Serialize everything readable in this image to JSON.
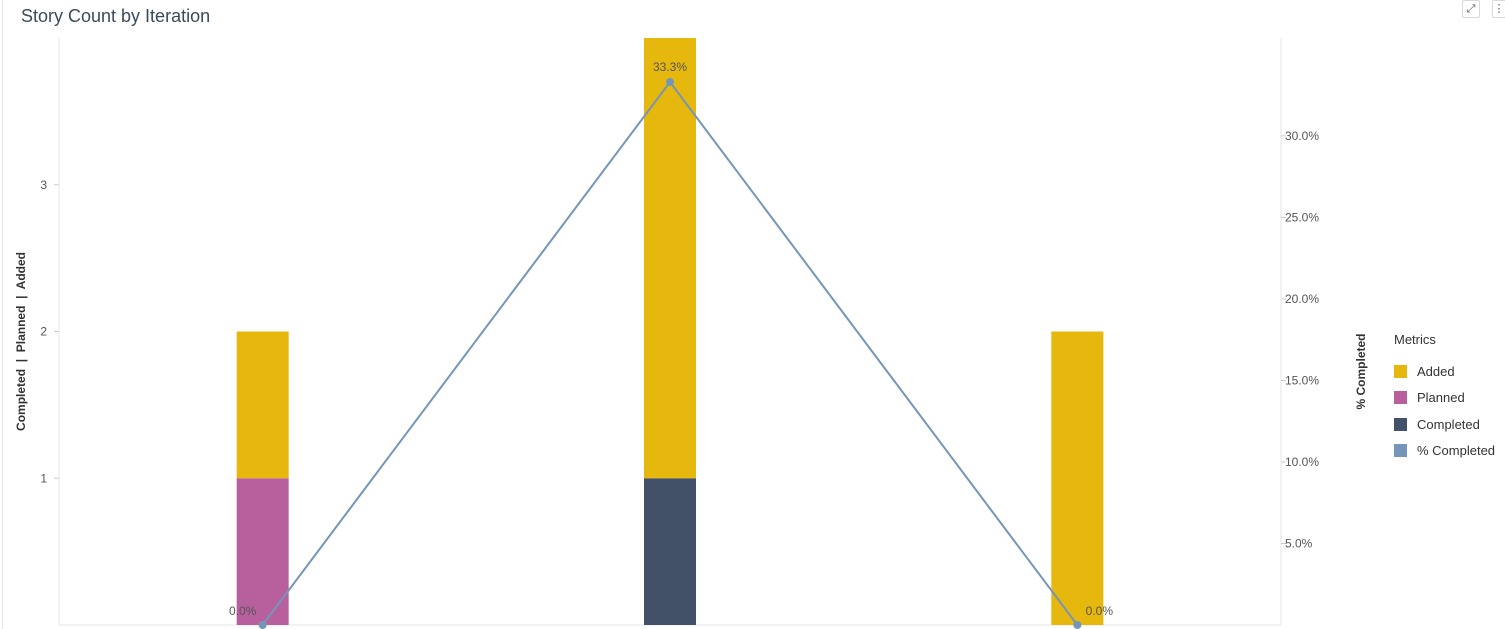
{
  "header": {
    "title": "Story Count by Iteration",
    "expand_icon": "expand-icon",
    "menu_icon": "more-vertical-icon"
  },
  "colors": {
    "added": "#e6b70d",
    "planned": "#b8609e",
    "completed": "#435168",
    "pct_completed": "#7596b8"
  },
  "chart_data": {
    "type": "bar",
    "stacked": true,
    "categories": [
      "",
      "",
      ""
    ],
    "series": [
      {
        "name": "Planned",
        "values": [
          1,
          0,
          0
        ]
      },
      {
        "name": "Completed",
        "values": [
          0,
          1,
          0
        ]
      },
      {
        "name": "Added",
        "values": [
          1,
          3,
          2
        ]
      }
    ],
    "line_series": {
      "name": "% Completed",
      "values": [
        0.0,
        33.3,
        0.0
      ],
      "labels": [
        "0.0%",
        "33.3%",
        "0.0%"
      ]
    },
    "ylabel": "Completed  |  Planned  |  Added",
    "ylabel_right": "% Completed",
    "ylim": [
      0,
      4
    ],
    "ylim_right": [
      0,
      36
    ],
    "y_ticks": [
      "1",
      "2",
      "3"
    ],
    "y_right_ticks": [
      "5.0%",
      "10.0%",
      "15.0%",
      "20.0%",
      "25.0%",
      "30.0%"
    ],
    "legend": {
      "title": "Metrics",
      "placement": "right"
    },
    "grid": false
  }
}
